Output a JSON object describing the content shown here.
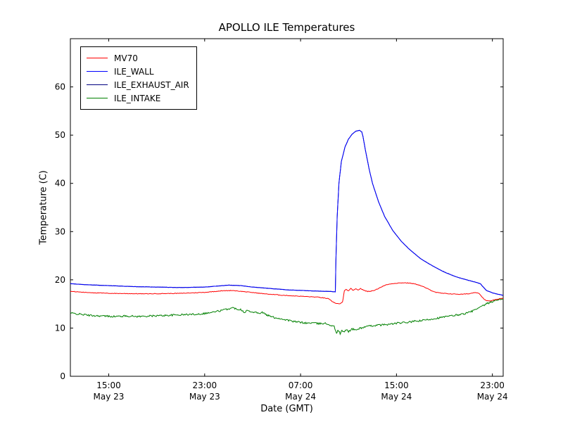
{
  "chart_data": {
    "type": "line",
    "title": "APOLLO ILE Temperatures",
    "xlabel": "Date (GMT)",
    "ylabel": "Temperature (C)",
    "x_unit": "hours since May 23 00:00 GMT",
    "xlim": [
      11.8,
      47.9
    ],
    "ylim": [
      0,
      70
    ],
    "grid": false,
    "legend_position": "upper-left",
    "yticks": [
      0,
      10,
      20,
      30,
      40,
      50,
      60
    ],
    "xticks": [
      {
        "x": 15,
        "line1": "15:00",
        "line2": "May 23"
      },
      {
        "x": 23,
        "line1": "23:00",
        "line2": "May 23"
      },
      {
        "x": 31,
        "line1": "07:00",
        "line2": "May 24"
      },
      {
        "x": 39,
        "line1": "15:00",
        "line2": "May 24"
      },
      {
        "x": 47,
        "line1": "23:00",
        "line2": "May 24"
      }
    ],
    "series": [
      {
        "name": "MV70",
        "color": "#ff0000",
        "noise": 0.06,
        "points": [
          [
            11.8,
            17.6
          ],
          [
            13,
            17.4
          ],
          [
            15,
            17.2
          ],
          [
            18,
            17.1
          ],
          [
            21,
            17.2
          ],
          [
            23,
            17.4
          ],
          [
            24.3,
            17.7
          ],
          [
            25.3,
            17.8
          ],
          [
            26.5,
            17.5
          ],
          [
            28,
            17.1
          ],
          [
            29.5,
            16.8
          ],
          [
            31,
            16.6
          ],
          [
            32.5,
            16.4
          ],
          [
            33.3,
            16.1
          ],
          [
            33.7,
            15.4
          ],
          [
            34,
            15.1
          ],
          [
            34.3,
            15.0
          ],
          [
            34.5,
            15.4
          ],
          [
            34.65,
            17.7
          ],
          [
            34.8,
            18.0
          ],
          [
            35,
            17.7
          ],
          [
            35.2,
            18.2
          ],
          [
            35.4,
            17.8
          ],
          [
            35.6,
            18.1
          ],
          [
            35.8,
            17.9
          ],
          [
            36,
            18.2
          ],
          [
            36.3,
            17.8
          ],
          [
            36.6,
            17.6
          ],
          [
            37,
            17.7
          ],
          [
            37.4,
            18.1
          ],
          [
            37.8,
            18.6
          ],
          [
            38.2,
            19.0
          ],
          [
            38.6,
            19.2
          ],
          [
            39,
            19.3
          ],
          [
            39.6,
            19.4
          ],
          [
            40.2,
            19.3
          ],
          [
            40.8,
            19.0
          ],
          [
            41.3,
            18.5
          ],
          [
            41.8,
            17.9
          ],
          [
            42.3,
            17.4
          ],
          [
            42.8,
            17.2
          ],
          [
            43.5,
            17.1
          ],
          [
            44.3,
            17.0
          ],
          [
            45,
            17.1
          ],
          [
            45.6,
            17.4
          ],
          [
            45.9,
            17.2
          ],
          [
            46.15,
            16.4
          ],
          [
            46.45,
            15.7
          ],
          [
            46.8,
            15.6
          ],
          [
            47.3,
            15.9
          ],
          [
            47.9,
            16.2
          ]
        ]
      },
      {
        "name": "ILE_WALL",
        "color": "#0000ff",
        "noise": 0.03,
        "points": [
          [
            11.8,
            19.2
          ],
          [
            13,
            19.0
          ],
          [
            15,
            18.8
          ],
          [
            17,
            18.6
          ],
          [
            19,
            18.5
          ],
          [
            21,
            18.4
          ],
          [
            23,
            18.5
          ],
          [
            24,
            18.7
          ],
          [
            25,
            18.9
          ],
          [
            26,
            18.8
          ],
          [
            27,
            18.5
          ],
          [
            28,
            18.3
          ],
          [
            30,
            17.9
          ],
          [
            32,
            17.7
          ],
          [
            33.5,
            17.6
          ],
          [
            33.9,
            17.5
          ],
          [
            33.95,
            24
          ],
          [
            34.05,
            33
          ],
          [
            34.2,
            40
          ],
          [
            34.4,
            44.5
          ],
          [
            34.7,
            47.5
          ],
          [
            35,
            49.2
          ],
          [
            35.3,
            50.2
          ],
          [
            35.6,
            50.8
          ],
          [
            35.9,
            51.0
          ],
          [
            36.1,
            50.7
          ],
          [
            36.2,
            49.8
          ],
          [
            36.4,
            47
          ],
          [
            36.7,
            43.2
          ],
          [
            37,
            40
          ],
          [
            37.5,
            36.2
          ],
          [
            38,
            33.2
          ],
          [
            38.7,
            30.2
          ],
          [
            39.4,
            28
          ],
          [
            40,
            26.5
          ],
          [
            41,
            24.4
          ],
          [
            42,
            22.9
          ],
          [
            43,
            21.6
          ],
          [
            44,
            20.6
          ],
          [
            45,
            19.9
          ],
          [
            45.6,
            19.5
          ],
          [
            46,
            19.2
          ],
          [
            46.2,
            18.6
          ],
          [
            46.5,
            17.8
          ],
          [
            47,
            17.3
          ],
          [
            47.5,
            17.0
          ],
          [
            47.9,
            16.8
          ]
        ]
      },
      {
        "name": "ILE_EXHAUST_AIR",
        "color": "#000080",
        "noise": 0.03,
        "points": [
          [
            11.8,
            19.2
          ],
          [
            13,
            19.0
          ],
          [
            15,
            18.8
          ],
          [
            17,
            18.6
          ],
          [
            19,
            18.5
          ],
          [
            21,
            18.4
          ],
          [
            23,
            18.5
          ],
          [
            24,
            18.7
          ],
          [
            25,
            18.9
          ],
          [
            26,
            18.8
          ],
          [
            27,
            18.5
          ],
          [
            28,
            18.3
          ],
          [
            30,
            17.9
          ],
          [
            32,
            17.7
          ],
          [
            33.5,
            17.6
          ],
          [
            33.9,
            17.5
          ],
          [
            33.95,
            24
          ],
          [
            34.05,
            33
          ],
          [
            34.2,
            40
          ],
          [
            34.4,
            44.5
          ],
          [
            34.7,
            47.5
          ],
          [
            35,
            49.2
          ],
          [
            35.3,
            50.2
          ],
          [
            35.6,
            50.8
          ],
          [
            35.9,
            51.0
          ],
          [
            36.1,
            50.7
          ],
          [
            36.2,
            49.8
          ],
          [
            36.4,
            47
          ],
          [
            36.7,
            43.2
          ],
          [
            37,
            40
          ],
          [
            37.5,
            36.2
          ],
          [
            38,
            33.2
          ],
          [
            38.7,
            30.2
          ],
          [
            39.4,
            28
          ],
          [
            40,
            26.5
          ],
          [
            41,
            24.4
          ],
          [
            42,
            22.9
          ],
          [
            43,
            21.6
          ],
          [
            44,
            20.6
          ],
          [
            45,
            19.9
          ],
          [
            45.6,
            19.5
          ],
          [
            46,
            19.2
          ],
          [
            46.2,
            18.6
          ],
          [
            46.5,
            17.8
          ],
          [
            47,
            17.3
          ],
          [
            47.5,
            17.0
          ],
          [
            47.9,
            16.8
          ]
        ]
      },
      {
        "name": "ILE_INTAKE",
        "color": "#008000",
        "noise": 0.18,
        "points": [
          [
            11.8,
            13.1
          ],
          [
            12.5,
            12.9
          ],
          [
            13.5,
            12.6
          ],
          [
            14.5,
            12.5
          ],
          [
            15.5,
            12.4
          ],
          [
            16.5,
            12.5
          ],
          [
            17.5,
            12.4
          ],
          [
            18.5,
            12.5
          ],
          [
            19.5,
            12.6
          ],
          [
            20.5,
            12.7
          ],
          [
            21.5,
            12.8
          ],
          [
            22.5,
            12.9
          ],
          [
            23.5,
            13.2
          ],
          [
            24.3,
            13.6
          ],
          [
            25,
            14.0
          ],
          [
            25.4,
            14.2
          ],
          [
            25.7,
            13.9
          ],
          [
            26,
            13.9
          ],
          [
            26.3,
            13.3
          ],
          [
            26.6,
            13.7
          ],
          [
            26.9,
            13.2
          ],
          [
            27.2,
            13.5
          ],
          [
            27.5,
            13.0
          ],
          [
            27.8,
            13.3
          ],
          [
            28.1,
            12.8
          ],
          [
            28.4,
            12.5
          ],
          [
            28.8,
            12.2
          ],
          [
            29.2,
            12.0
          ],
          [
            29.6,
            11.8
          ],
          [
            30,
            11.6
          ],
          [
            30.5,
            11.3
          ],
          [
            31,
            11.2
          ],
          [
            31.5,
            11.0
          ],
          [
            32,
            11.1
          ],
          [
            32.5,
            10.9
          ],
          [
            33,
            11.0
          ],
          [
            33.4,
            10.7
          ],
          [
            33.8,
            10.3
          ],
          [
            34,
            9.0
          ],
          [
            34.15,
            9.6
          ],
          [
            34.3,
            8.8
          ],
          [
            34.45,
            9.5
          ],
          [
            34.6,
            9.1
          ],
          [
            34.8,
            9.7
          ],
          [
            35,
            9.3
          ],
          [
            35.3,
            9.8
          ],
          [
            35.6,
            9.6
          ],
          [
            36,
            10.0
          ],
          [
            36.5,
            10.3
          ],
          [
            37,
            10.5
          ],
          [
            37.5,
            10.6
          ],
          [
            38,
            10.7
          ],
          [
            38.5,
            10.8
          ],
          [
            39,
            11.0
          ],
          [
            39.5,
            11.1
          ],
          [
            40,
            11.2
          ],
          [
            40.5,
            11.4
          ],
          [
            41,
            11.5
          ],
          [
            41.5,
            11.7
          ],
          [
            42,
            11.9
          ],
          [
            42.5,
            12.1
          ],
          [
            43,
            12.3
          ],
          [
            43.5,
            12.5
          ],
          [
            44,
            12.7
          ],
          [
            44.5,
            12.9
          ],
          [
            45,
            13.2
          ],
          [
            45.5,
            13.7
          ],
          [
            46,
            14.3
          ],
          [
            46.5,
            15.0
          ],
          [
            47,
            15.5
          ],
          [
            47.5,
            15.9
          ],
          [
            47.9,
            16.1
          ]
        ]
      }
    ]
  }
}
